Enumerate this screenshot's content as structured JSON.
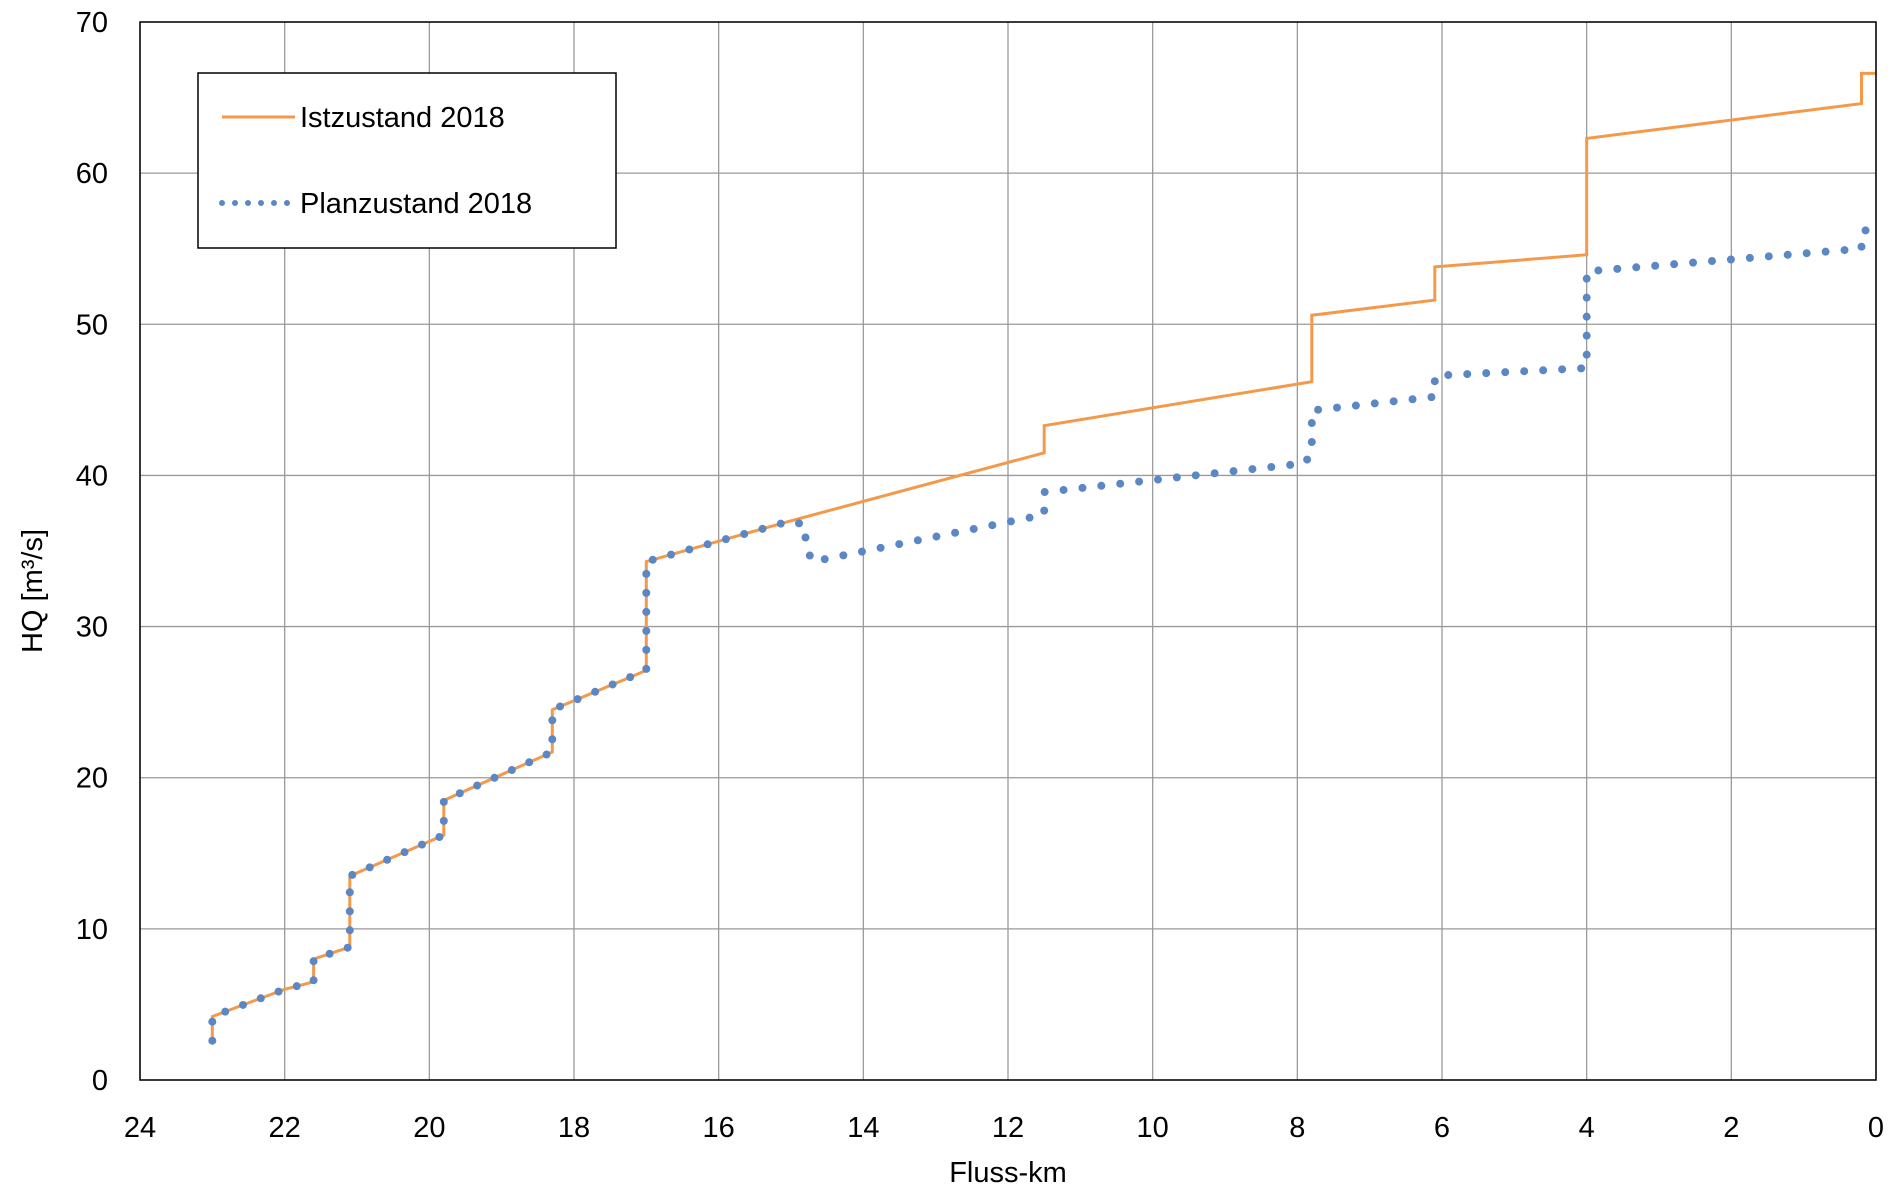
{
  "chart_data": {
    "type": "line",
    "title": "",
    "xlabel": "Fluss-km",
    "ylabel": "HQ [m³/s]",
    "xlim": [
      24,
      0
    ],
    "x_reversed": true,
    "ylim": [
      0,
      70
    ],
    "xticks": [
      24,
      22,
      20,
      18,
      16,
      14,
      12,
      10,
      8,
      6,
      4,
      2,
      0
    ],
    "yticks": [
      0,
      10,
      20,
      30,
      40,
      50,
      60,
      70
    ],
    "grid": true,
    "legend_position": "top-left",
    "series": [
      {
        "name": "Istzustand 2018",
        "color": "#F4994A",
        "style": "solid",
        "points": [
          [
            23.0,
            2.6
          ],
          [
            23.0,
            4.2
          ],
          [
            22.0,
            6.0
          ],
          [
            21.6,
            6.5
          ],
          [
            21.6,
            8.0
          ],
          [
            21.1,
            8.8
          ],
          [
            21.1,
            13.5
          ],
          [
            19.8,
            16.2
          ],
          [
            19.8,
            18.5
          ],
          [
            18.3,
            21.7
          ],
          [
            18.3,
            24.5
          ],
          [
            17.0,
            27.1
          ],
          [
            17.0,
            34.3
          ],
          [
            15.0,
            37.0
          ],
          [
            11.5,
            41.5
          ],
          [
            11.5,
            43.3
          ],
          [
            7.8,
            46.2
          ],
          [
            7.8,
            50.6
          ],
          [
            6.1,
            51.6
          ],
          [
            6.1,
            53.8
          ],
          [
            4.0,
            54.6
          ],
          [
            4.0,
            62.3
          ],
          [
            0.2,
            64.6
          ],
          [
            0.2,
            66.6
          ],
          [
            0.0,
            66.6
          ]
        ]
      },
      {
        "name": "Planzustand 2018",
        "color": "#5B87C5",
        "style": "dotted",
        "points": [
          [
            23.0,
            2.6
          ],
          [
            23.0,
            4.2
          ],
          [
            22.0,
            6.0
          ],
          [
            21.6,
            6.5
          ],
          [
            21.6,
            8.0
          ],
          [
            21.1,
            8.8
          ],
          [
            21.1,
            13.5
          ],
          [
            19.8,
            16.2
          ],
          [
            19.8,
            18.5
          ],
          [
            18.3,
            21.7
          ],
          [
            18.3,
            24.5
          ],
          [
            17.0,
            27.1
          ],
          [
            17.0,
            34.3
          ],
          [
            15.0,
            37.0
          ],
          [
            14.8,
            36.7
          ],
          [
            14.8,
            35.3
          ],
          [
            14.7,
            34.3
          ],
          [
            11.5,
            37.4
          ],
          [
            11.5,
            38.9
          ],
          [
            7.9,
            40.8
          ],
          [
            7.8,
            41.5
          ],
          [
            7.8,
            44.3
          ],
          [
            6.1,
            45.2
          ],
          [
            6.1,
            46.6
          ],
          [
            4.0,
            47.1
          ],
          [
            4.0,
            53.5
          ],
          [
            0.2,
            55.0
          ],
          [
            0.2,
            56.1
          ],
          [
            0.0,
            56.5
          ]
        ]
      }
    ]
  }
}
